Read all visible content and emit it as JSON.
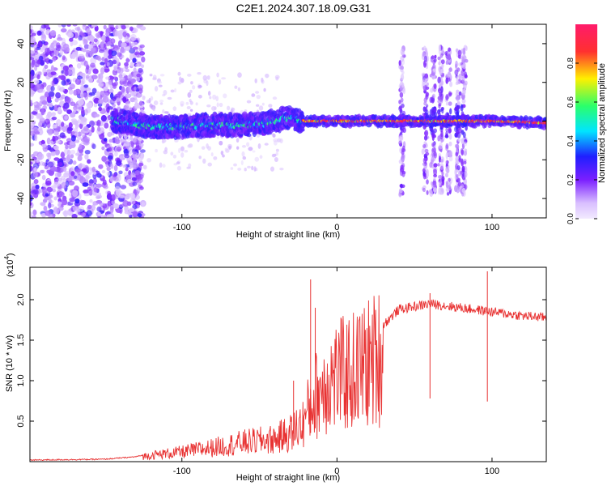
{
  "title": "C2E1.2024.307.18.09.G31",
  "chart_data": [
    {
      "type": "heatmap",
      "xlabel": "Height of straight line (km)",
      "ylabel": "Frequency (Hz)",
      "xlim": [
        -198,
        135
      ],
      "ylim": [
        -50,
        50
      ],
      "xticks": [
        -100,
        0,
        100
      ],
      "yticks": [
        -40,
        -20,
        0,
        20,
        40
      ],
      "colorbar": {
        "label": "Normalized spectral amplitude",
        "range": [
          0,
          1
        ],
        "ticks": [
          "0.0",
          "0.2",
          "0.4",
          "0.6",
          "0.8"
        ],
        "colors": [
          "#f2eaff",
          "#d9bfff",
          "#7b1fff",
          "#1f1fff",
          "#00e5ff",
          "#2bff6a",
          "#fff000",
          "#ff3030",
          "#ff1b6b"
        ]
      },
      "features": {
        "noise_region_x": [
          -198,
          -135
        ],
        "main_trace": [
          {
            "x": -140,
            "y": 0
          },
          {
            "x": -120,
            "y": -3
          },
          {
            "x": -100,
            "y": -3
          },
          {
            "x": -80,
            "y": -2
          },
          {
            "x": -60,
            "y": -2
          },
          {
            "x": -45,
            "y": -1
          },
          {
            "x": -30,
            "y": 2
          },
          {
            "x": -22,
            "y": 0
          },
          {
            "x": 0,
            "y": 0
          },
          {
            "x": 50,
            "y": 0
          },
          {
            "x": 100,
            "y": 0
          },
          {
            "x": 135,
            "y": -1
          }
        ],
        "strong_segment_x": [
          -22,
          135
        ],
        "vertical_bursts_x": [
          42,
          57,
          62,
          67,
          72,
          78,
          82
        ]
      }
    },
    {
      "type": "line",
      "xlabel": "Height of straight line (km)",
      "ylabel": "SNR (10 * v/v)",
      "multiplier_label": "(x10",
      "multiplier_exp": "4",
      "xlim": [
        -198,
        135
      ],
      "ylim": [
        0,
        2.4
      ],
      "xticks": [
        -100,
        0,
        100
      ],
      "yticks": [
        0.5,
        1.0,
        1.5,
        2.0
      ],
      "ytick_labels": [
        "0.5",
        "1.0",
        "1.5",
        "2.0"
      ],
      "color": "#e83232",
      "envelope": [
        {
          "x": -198,
          "y": 0.02
        },
        {
          "x": -150,
          "y": 0.03
        },
        {
          "x": -130,
          "y": 0.06
        },
        {
          "x": -120,
          "y": 0.1
        },
        {
          "x": -100,
          "y": 0.15
        },
        {
          "x": -80,
          "y": 0.22
        },
        {
          "x": -60,
          "y": 0.3
        },
        {
          "x": -40,
          "y": 0.35
        },
        {
          "x": -30,
          "y": 0.45
        },
        {
          "x": -22,
          "y": 0.6
        },
        {
          "x": -15,
          "y": 1.0
        },
        {
          "x": -5,
          "y": 1.3
        },
        {
          "x": 10,
          "y": 1.4
        },
        {
          "x": 25,
          "y": 1.6
        },
        {
          "x": 40,
          "y": 1.88
        },
        {
          "x": 60,
          "y": 1.95
        },
        {
          "x": 80,
          "y": 1.9
        },
        {
          "x": 100,
          "y": 1.85
        },
        {
          "x": 120,
          "y": 1.8
        },
        {
          "x": 135,
          "y": 1.78
        }
      ],
      "spikes": [
        {
          "x": -17,
          "y": 2.25
        },
        {
          "x": -14,
          "y": 1.9
        },
        {
          "x": -28,
          "y": 1.0
        },
        {
          "x": 97,
          "y": 2.35
        },
        {
          "x": 60,
          "y": 2.08
        }
      ]
    }
  ]
}
